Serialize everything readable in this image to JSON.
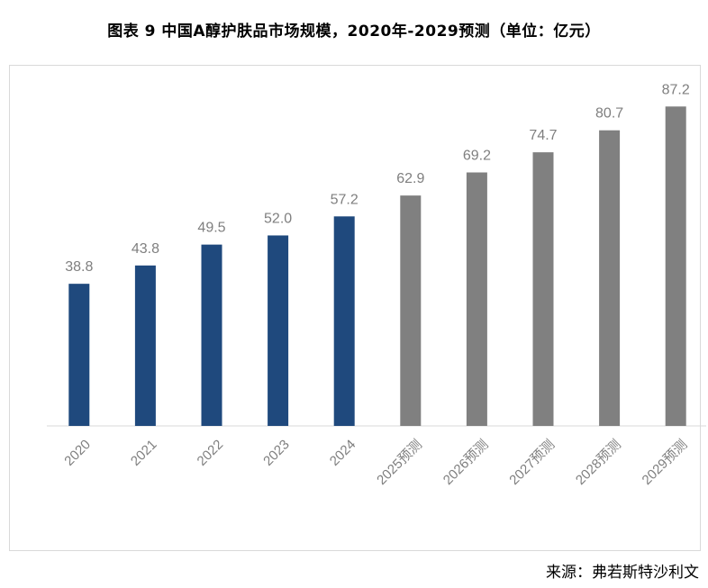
{
  "title": "图表 9 中国A醇护肤品市场规模，2020年-2029预测（单位：亿元）",
  "source": "来源：弗若斯特沙利文",
  "colors": {
    "actual": "#1f497d",
    "forecast": "#808080",
    "labels": "#7f7f7f",
    "axis": "#d9d9d9"
  },
  "chart_data": {
    "type": "bar",
    "categories": [
      "2020",
      "2021",
      "2022",
      "2023",
      "2024",
      "2025预测",
      "2026预测",
      "2027预测",
      "2028预测",
      "2029预测"
    ],
    "values": [
      38.8,
      43.8,
      49.5,
      52.0,
      57.2,
      62.9,
      69.2,
      74.7,
      80.7,
      87.2
    ],
    "data_labels": [
      "38.8",
      "43.8",
      "49.5",
      "52.0",
      "57.2",
      "62.9",
      "69.2",
      "74.7",
      "80.7",
      "87.2"
    ],
    "bar_kind": [
      "actual",
      "actual",
      "actual",
      "actual",
      "actual",
      "forecast",
      "forecast",
      "forecast",
      "forecast",
      "forecast"
    ],
    "ylim": [
      0,
      90
    ],
    "grid": false,
    "legend": "none",
    "xlabel": "",
    "ylabel": ""
  }
}
